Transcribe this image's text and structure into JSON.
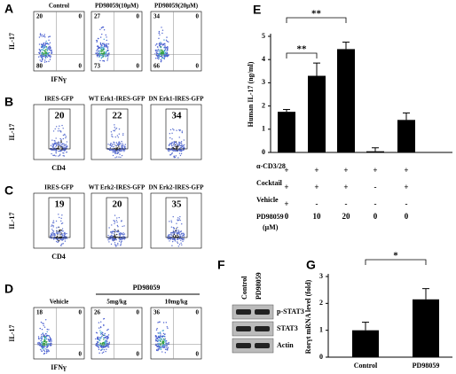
{
  "panels_flow": [
    {
      "label": "A",
      "x_axis": "IFNγ",
      "y_axis": "IL-17",
      "plots": [
        {
          "title": "Control",
          "quadrants": {
            "upper_left": 20,
            "upper_right": 0,
            "lower_left": 80,
            "lower_right": 0
          }
        },
        {
          "title": "PD98059(10μM)",
          "quadrants": {
            "upper_left": 27,
            "upper_right": 0,
            "lower_left": 73,
            "lower_right": 0
          }
        },
        {
          "title": "PD98059(20μM)",
          "quadrants": {
            "upper_left": 34,
            "upper_right": 0,
            "lower_left": 66,
            "lower_right": 0
          }
        }
      ]
    },
    {
      "label": "B",
      "x_axis": "CD4",
      "y_axis": "IL-17",
      "plots": [
        {
          "title": "IRES-GFP",
          "gate_percent": 20
        },
        {
          "title": "WT Erk1-IRES-GFP",
          "gate_percent": 22
        },
        {
          "title": "DN Erk1-IRES-GFP",
          "gate_percent": 34
        }
      ]
    },
    {
      "label": "C",
      "x_axis": "CD4",
      "y_axis": "IL-17",
      "plots": [
        {
          "title": "IRES-GFP",
          "gate_percent": 19
        },
        {
          "title": "WT Erk2-IRES-GFP",
          "gate_percent": 20
        },
        {
          "title": "DN Erk2-IRES-GFP",
          "gate_percent": 35
        }
      ]
    },
    {
      "label": "D",
      "x_axis": "IFNγ",
      "y_axis": "IL-17",
      "group_title": "PD98059",
      "plots": [
        {
          "title": "Vehicle",
          "quadrants": {
            "upper_left": 18,
            "upper_right": 0,
            "lower_right": 0
          }
        },
        {
          "title": "5mg/kg",
          "quadrants": {
            "upper_left": 26,
            "upper_right": 0,
            "lower_right": 0
          }
        },
        {
          "title": "10mg/kg",
          "quadrants": {
            "upper_left": 36,
            "upper_right": 0,
            "lower_right": 0
          }
        }
      ]
    }
  ],
  "panel_f": {
    "label": "F",
    "columns": [
      "Control",
      "PD98059"
    ],
    "rows": [
      "p-STAT3",
      "STAT3",
      "Actin"
    ]
  },
  "chart_data": [
    {
      "type": "bar",
      "panel": "E",
      "y_label": "Human IL-17 (ng/ml)",
      "categories": [
        null,
        null,
        null,
        null,
        null
      ],
      "values": [
        1.75,
        3.3,
        4.45,
        0.05,
        1.4
      ],
      "errors": [
        0.1,
        0.55,
        0.3,
        0.15,
        0.3
      ],
      "color": "#000000",
      "ylim": [
        0,
        5
      ],
      "yticks": [
        0,
        1,
        2,
        3,
        4,
        5
      ],
      "significance": [
        "**",
        "**"
      ],
      "conditions": [
        {
          "label": "α-CD3/28",
          "cells": [
            "+",
            "+",
            "+",
            "+",
            "+"
          ]
        },
        {
          "label": "Cocktail",
          "cells": [
            "+",
            "+",
            "+",
            "-",
            "+"
          ]
        },
        {
          "label": "Vehicle",
          "cells": [
            "+",
            "-",
            "-",
            "-",
            "-"
          ]
        },
        {
          "label": "PD98059",
          "unit": "(μM)",
          "cells": [
            0,
            10,
            20,
            0,
            0
          ]
        }
      ]
    },
    {
      "type": "bar",
      "panel": "G",
      "y_label": "Rorγt mRNA level (fold)",
      "categories": [
        "Control",
        "PD98059"
      ],
      "values": [
        1.0,
        2.15
      ],
      "errors": [
        0.3,
        0.4
      ],
      "color": "#000000",
      "ylim": [
        0,
        3
      ],
      "yticks": [
        0,
        1,
        2,
        3
      ],
      "significance": [
        "*"
      ]
    }
  ]
}
